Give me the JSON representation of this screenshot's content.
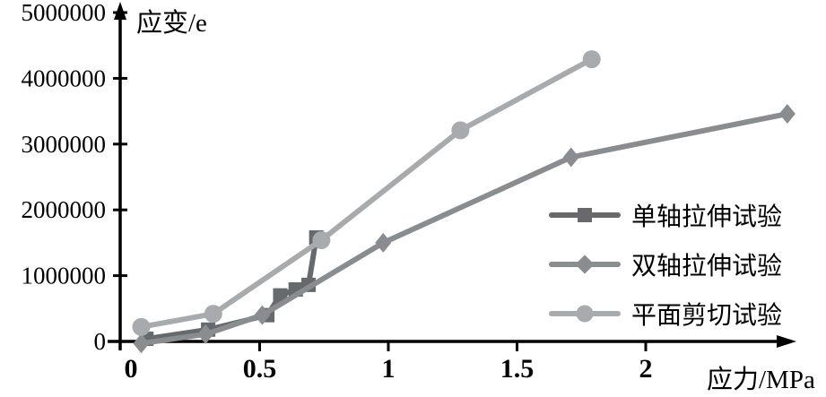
{
  "chart_data": {
    "type": "line",
    "title": "",
    "xlabel": "应力/MPa",
    "ylabel": "应变/e",
    "xlim": [
      0,
      2.6
    ],
    "ylim": [
      0,
      5000000
    ],
    "x_ticks": [
      0,
      0.5,
      1,
      1.5,
      2
    ],
    "y_ticks": [
      0,
      1000000,
      2000000,
      3000000,
      4000000,
      5000000
    ],
    "grid": false,
    "legend_position": "inside-right",
    "axis_color": "#000000",
    "series": [
      {
        "name": "单轴拉伸试验",
        "marker": "square",
        "color": "#666a6d",
        "x": [
          0.06,
          0.3,
          0.53,
          0.58,
          0.64,
          0.69,
          0.72
        ],
        "y": [
          40000,
          180000,
          400000,
          700000,
          790000,
          860000,
          1580000
        ]
      },
      {
        "name": "双轴拉伸试验",
        "marker": "diamond",
        "color": "#8a8d8f",
        "x": [
          0.04,
          0.29,
          0.51,
          0.98,
          1.71,
          2.55
        ],
        "y": [
          -30000,
          110000,
          400000,
          1500000,
          2800000,
          3460000
        ]
      },
      {
        "name": "平面剪切试验",
        "marker": "circle",
        "color": "#a8abad",
        "x": [
          0.04,
          0.32,
          0.74,
          1.28,
          1.79
        ],
        "y": [
          220000,
          420000,
          1540000,
          3210000,
          4290000
        ]
      }
    ]
  }
}
